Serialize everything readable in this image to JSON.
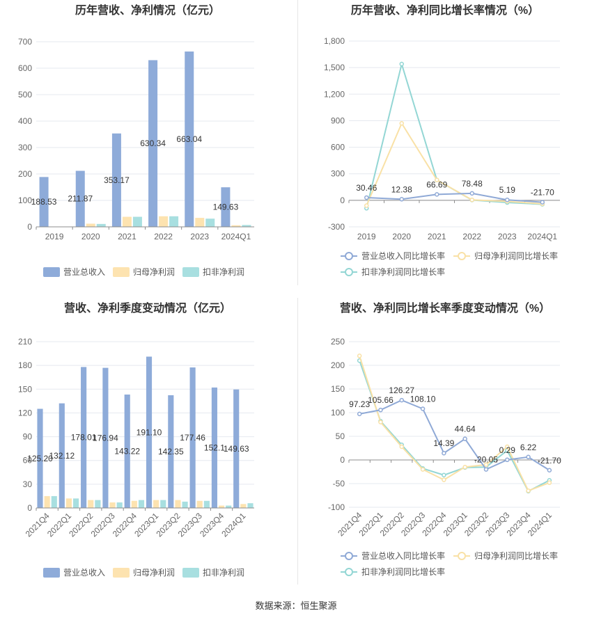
{
  "colors": {
    "revenue": "#8eabd9",
    "net_profit": "#fde3b0",
    "deducted_profit": "#a8dfe0",
    "revenue_line": "#8fa9d6",
    "net_line": "#f9e1a6",
    "deducted_line": "#93d6d4",
    "grid": "#e5e8ef",
    "axis_text": "#666666"
  },
  "source": "数据来源：恒生聚源",
  "chart_data": [
    {
      "type": "bar",
      "title": "历年营收、净利情况（亿元）",
      "categories": [
        "2019",
        "2020",
        "2021",
        "2022",
        "2023",
        "2024Q1"
      ],
      "ylim": [
        0,
        700
      ],
      "yticks": [
        0,
        100,
        200,
        300,
        400,
        500,
        600,
        700
      ],
      "series": [
        {
          "name": "营业总收入",
          "values": [
            188.53,
            211.87,
            353.17,
            630.34,
            663.04,
            149.63
          ]
        },
        {
          "name": "归母净利润",
          "values": [
            0.5,
            12,
            38,
            40,
            34,
            6
          ]
        },
        {
          "name": "扣非净利润",
          "values": [
            0.3,
            11,
            38,
            40,
            31,
            7
          ]
        }
      ],
      "data_labels": [
        "188.53",
        "211.87",
        "353.17",
        "630.34",
        "663.04",
        "149.63"
      ],
      "legend": "bottom",
      "grid": true
    },
    {
      "type": "line",
      "title": "历年营收、净利同比增长率情况（%）",
      "categories": [
        "2019",
        "2020",
        "2021",
        "2022",
        "2023",
        "2024Q1"
      ],
      "ylim": [
        -300,
        1800
      ],
      "yticks": [
        -300,
        0,
        300,
        600,
        900,
        1200,
        1500,
        1800
      ],
      "ytick_labels": [
        "-300",
        "0",
        "300",
        "600",
        "900",
        "1,200",
        "1,500",
        "1,800"
      ],
      "series": [
        {
          "name": "营业总收入同比增长率",
          "values": [
            30.46,
            12.38,
            66.69,
            78.48,
            5.19,
            -21.7
          ]
        },
        {
          "name": "归母净利润同比增长率",
          "values": [
            -60,
            870,
            230,
            5,
            -12,
            -40
          ]
        },
        {
          "name": "扣非净利润同比增长率",
          "values": [
            -90,
            1540,
            230,
            3,
            -25,
            -45
          ]
        }
      ],
      "data_labels": [
        "30.46",
        "12.38",
        "66.69",
        "78.48",
        "5.19",
        "-21.70"
      ],
      "legend": "bottom",
      "grid": true
    },
    {
      "type": "bar",
      "title": "营收、净利季度变动情况（亿元）",
      "categories": [
        "2021Q4",
        "2022Q1",
        "2022Q2",
        "2022Q3",
        "2022Q4",
        "2023Q1",
        "2023Q2",
        "2023Q3",
        "2023Q4",
        "2024Q1"
      ],
      "ylim": [
        0,
        210
      ],
      "yticks": [
        0,
        30,
        60,
        90,
        120,
        150,
        180,
        210
      ],
      "series": [
        {
          "name": "营业总收入",
          "values": [
            125.2,
            132.12,
            178.01,
            176.94,
            143.22,
            191.1,
            142.35,
            177.46,
            152.1,
            149.63
          ]
        },
        {
          "name": "归母净利润",
          "values": [
            15,
            12,
            10,
            7,
            9,
            10,
            10,
            9,
            3,
            5
          ]
        },
        {
          "name": "扣非净利润",
          "values": [
            15,
            12,
            10,
            7,
            10,
            10,
            8,
            9,
            3,
            6
          ]
        }
      ],
      "data_labels": [
        "125.20",
        "132.12",
        "178.01",
        "176.94",
        "143.22",
        "191.10",
        "142.35",
        "177.46",
        "152.1",
        "149.63"
      ],
      "legend": "bottom",
      "grid": true
    },
    {
      "type": "line",
      "title": "营收、净利同比增长率季度变动情况（%）",
      "categories": [
        "2021Q4",
        "2022Q1",
        "2022Q2",
        "2022Q3",
        "2022Q4",
        "2023Q1",
        "2023Q2",
        "2023Q3",
        "2023Q4",
        "2024Q1"
      ],
      "ylim": [
        -100,
        250
      ],
      "yticks": [
        -100,
        -50,
        0,
        50,
        100,
        150,
        200,
        250
      ],
      "series": [
        {
          "name": "营业总收入同比增长率",
          "values": [
            97.23,
            105.66,
            126.27,
            108.1,
            14.39,
            44.64,
            -20.05,
            0.29,
            6.22,
            -21.7
          ]
        },
        {
          "name": "归母净利润同比增长率",
          "values": [
            220,
            80,
            28,
            -20,
            -42,
            -15,
            -10,
            28,
            -65,
            -48
          ]
        },
        {
          "name": "扣非净利润同比增长率",
          "values": [
            210,
            82,
            32,
            -18,
            -32,
            -16,
            -15,
            20,
            -66,
            -43
          ]
        }
      ],
      "data_labels": [
        "97.23",
        "105.66",
        "126.27",
        "108.10",
        "14.39",
        "44.64",
        "-20.05",
        "0.29",
        "6.22",
        "-21.70"
      ],
      "legend": "bottom",
      "grid": true
    }
  ]
}
